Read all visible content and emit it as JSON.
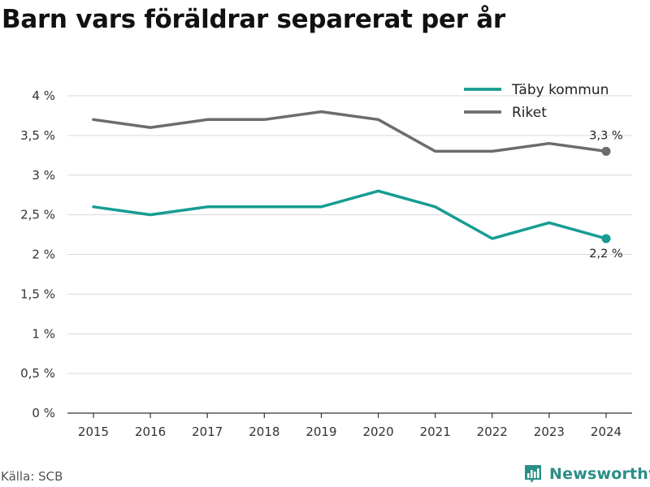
{
  "title": "Barn vars föräldrar separerat per år",
  "source": "Källa: SCB",
  "brand": {
    "name": "Newsworthy",
    "icon": "bar-chart-logo-icon"
  },
  "colors": {
    "accent": "#169c93",
    "secondary": "#6b6b70",
    "grid": "#d9d9d9",
    "brand": "#2a8f86"
  },
  "chart_data": {
    "type": "line",
    "title": "Barn vars föräldrar separerat per år",
    "xlabel": "",
    "ylabel": "",
    "x": [
      "2015",
      "2016",
      "2017",
      "2018",
      "2019",
      "2020",
      "2021",
      "2022",
      "2023",
      "2024"
    ],
    "y_ticks": [
      "0 %",
      "0,5 %",
      "1 %",
      "1,5 %",
      "2 %",
      "2,5 %",
      "3 %",
      "3,5 %",
      "4 %"
    ],
    "ylim": [
      0,
      4
    ],
    "grid": true,
    "legend_position": "top-right",
    "series": [
      {
        "name": "Täby kommun",
        "color": "#169c93",
        "values": [
          2.6,
          2.5,
          2.6,
          2.6,
          2.6,
          2.8,
          2.6,
          2.2,
          2.4,
          2.2
        ],
        "end_label": "2,2 %"
      },
      {
        "name": "Riket",
        "color": "#6b6b70",
        "values": [
          3.7,
          3.6,
          3.7,
          3.7,
          3.8,
          3.7,
          3.3,
          3.3,
          3.4,
          3.3
        ],
        "end_label": "3,3 %"
      }
    ]
  }
}
